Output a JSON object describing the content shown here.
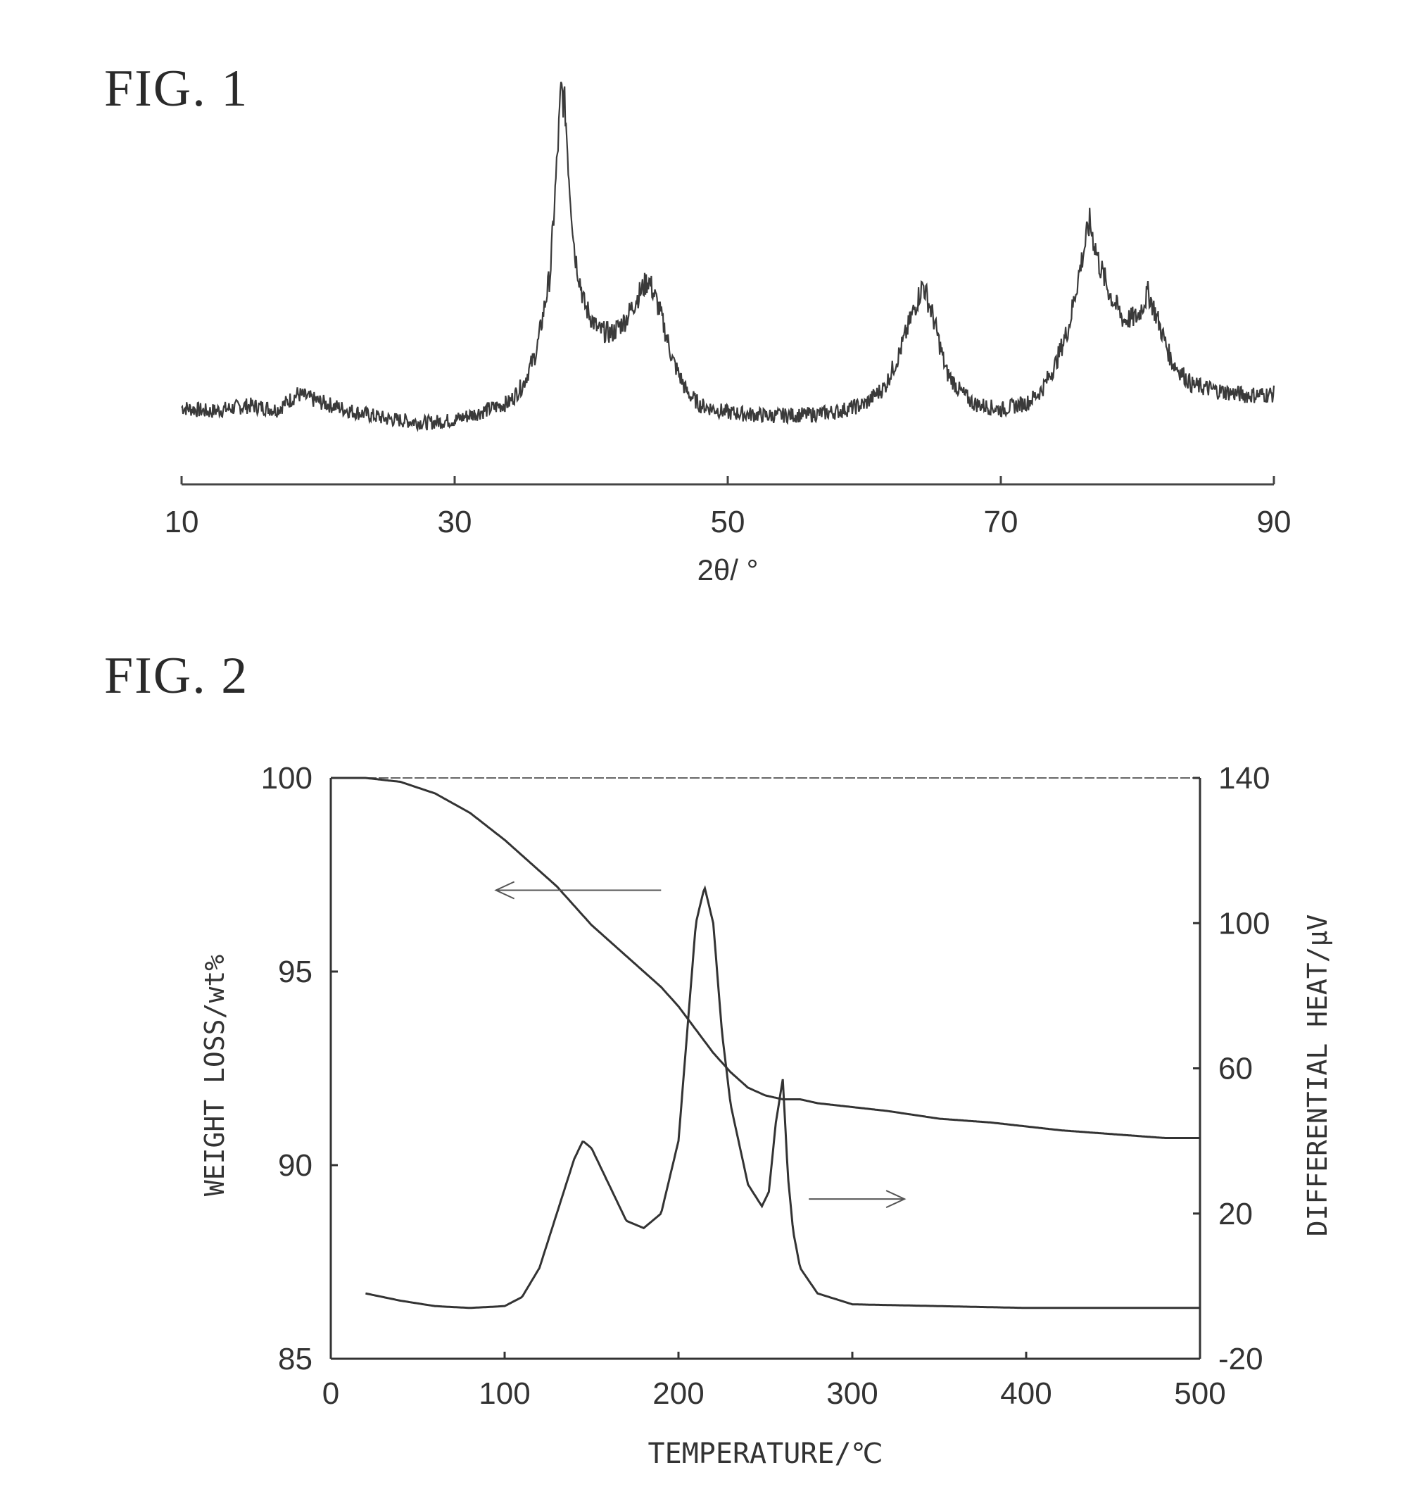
{
  "figures": {
    "fig1": {
      "label": "FIG.  1"
    },
    "fig2": {
      "label": "FIG.  2"
    }
  },
  "chart_data": [
    {
      "type": "line",
      "title": "",
      "xlabel": "2θ/ °",
      "ylabel": "",
      "xlim": [
        10,
        90
      ],
      "x_ticks": [
        10,
        30,
        50,
        70,
        90
      ],
      "x_tick_labels": [
        "10",
        "30",
        "50",
        "70",
        "90"
      ],
      "y_axis_shown": false,
      "grid": false,
      "legend": "none",
      "series": [
        {
          "x": [
            10,
            12,
            15,
            17,
            18.5,
            20,
            22,
            25,
            28,
            30,
            32,
            34,
            35,
            36,
            37,
            37.5,
            37.8,
            38.1,
            38.4,
            38.8,
            39.5,
            40.5,
            41.5,
            42.5,
            43.5,
            44.2,
            45,
            46,
            47,
            48,
            50,
            53,
            56,
            58,
            60,
            61.5,
            62.5,
            63.5,
            64.3,
            65,
            66,
            67,
            68,
            70,
            72,
            73,
            74,
            75,
            75.8,
            76.5,
            77.2,
            78,
            79,
            80,
            80.8,
            81.5,
            82.5,
            84,
            86,
            88,
            90
          ],
          "y": [
            2,
            1.6,
            2.2,
            1.8,
            3.3,
            2.6,
            1.8,
            0.9,
            0.5,
            0.8,
            1.6,
            2.5,
            4.2,
            7.5,
            15,
            26,
            33,
            31,
            24,
            17,
            12,
            9.5,
            9.2,
            10.5,
            13,
            14.5,
            11.5,
            6.5,
            3.5,
            2.2,
            1.5,
            1.2,
            1.3,
            1.6,
            2.3,
            4,
            7,
            11,
            14,
            11,
            5.5,
            3.6,
            2.4,
            1.8,
            2.5,
            3.7,
            6.2,
            10,
            15.5,
            20,
            16,
            13,
            10.5,
            10.8,
            13.2,
            10.5,
            6.5,
            4.2,
            3.6,
            3.2,
            3.3
          ]
        }
      ]
    },
    {
      "type": "line",
      "title": "",
      "xlabel": "TEMPERATURE/℃",
      "ylabel": "WEIGHT LOSS/wt%",
      "y2label": "DIFFERENTIAL HEAT/μV",
      "xlim": [
        0,
        500
      ],
      "ylim": [
        85,
        100
      ],
      "y2lim": [
        -20,
        140
      ],
      "x_ticks": [
        0,
        100,
        200,
        300,
        400,
        500
      ],
      "x_tick_labels": [
        "0",
        "100",
        "200",
        "300",
        "400",
        "500"
      ],
      "y_ticks": [
        85,
        90,
        95,
        100
      ],
      "y_tick_labels": [
        "85",
        "90",
        "95",
        "100"
      ],
      "y2_ticks": [
        -20,
        20,
        60,
        100,
        140
      ],
      "y2_tick_labels": [
        "-20",
        "20",
        "60",
        "100",
        "140"
      ],
      "grid": false,
      "legend": "none",
      "series": [
        {
          "axis": "left",
          "x": [
            0,
            20,
            40,
            60,
            80,
            100,
            110,
            120,
            130,
            140,
            150,
            160,
            170,
            180,
            190,
            200,
            210,
            220,
            230,
            240,
            250,
            260,
            270,
            280,
            300,
            320,
            350,
            380,
            400,
            420,
            450,
            480,
            500
          ],
          "y": [
            100,
            100,
            99.9,
            99.6,
            99.1,
            98.4,
            98,
            97.6,
            97.2,
            96.7,
            96.2,
            95.8,
            95.4,
            95,
            94.6,
            94.1,
            93.5,
            92.9,
            92.4,
            92,
            91.8,
            91.7,
            91.7,
            91.6,
            91.5,
            91.4,
            91.2,
            91.1,
            91,
            90.9,
            90.8,
            90.7,
            90.7
          ]
        },
        {
          "axis": "right",
          "x": [
            20,
            40,
            60,
            80,
            100,
            110,
            120,
            130,
            140,
            145,
            150,
            160,
            170,
            180,
            190,
            200,
            205,
            210,
            215,
            220,
            225,
            230,
            240,
            248,
            252,
            256,
            260,
            263,
            266,
            270,
            280,
            300,
            350,
            400,
            450,
            500
          ],
          "y": [
            -2,
            -4,
            -5.5,
            -6,
            -5.5,
            -3,
            5,
            20,
            35,
            40,
            38,
            28,
            18,
            16,
            20,
            40,
            70,
            100,
            110,
            100,
            70,
            50,
            28,
            22,
            26,
            45,
            57,
            30,
            15,
            5,
            -2,
            -5,
            -5.5,
            -6,
            -6,
            -6
          ]
        }
      ]
    }
  ]
}
